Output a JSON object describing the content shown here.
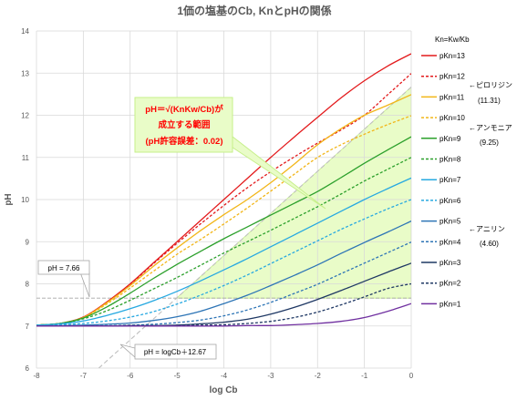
{
  "chart_data": {
    "type": "line",
    "title": "1価の塩基のCb, KnとpHの関係",
    "xlabel": "log Cb",
    "ylabel": "pH",
    "xlim": [
      -8,
      0
    ],
    "ylim": [
      6,
      14
    ],
    "x_ticks": [
      "-8",
      "-7",
      "-6",
      "-5",
      "-4",
      "-3",
      "-2",
      "-1",
      "0"
    ],
    "y_ticks": [
      "6",
      "7",
      "8",
      "9",
      "10",
      "11",
      "12",
      "13",
      "14"
    ],
    "grid": true,
    "legend_position": "right",
    "legend_title": "Kn=Kw/Kb",
    "x_samples": [
      -8,
      -7.5,
      -7,
      -6.5,
      -6,
      -5.5,
      -5,
      -4.5,
      -4,
      -3.5,
      -3,
      -2.5,
      -2,
      -1.5,
      -1,
      -0.5,
      0
    ],
    "series": [
      {
        "name": "pKn=13",
        "pKn": 13,
        "color": "#e31a1c",
        "dash": "solid",
        "values": [
          7.02,
          7.06,
          7.21,
          7.57,
          8.0,
          8.5,
          9.0,
          9.5,
          10.0,
          10.5,
          11.0,
          11.48,
          11.95,
          12.41,
          12.82,
          13.17,
          13.46
        ]
      },
      {
        "name": "pKn=12",
        "pKn": 12,
        "color": "#e31a1c",
        "dash": "dashed",
        "values": [
          7.02,
          7.06,
          7.21,
          7.56,
          7.99,
          8.48,
          8.96,
          9.42,
          9.86,
          10.28,
          10.66,
          11.01,
          11.34,
          11.65,
          12.0,
          12.49,
          12.99
        ]
      },
      {
        "name": "pKn=11",
        "pKn": 11,
        "color": "#f2b619",
        "dash": "solid",
        "values": [
          7.02,
          7.06,
          7.2,
          7.55,
          7.96,
          8.42,
          8.85,
          9.26,
          9.64,
          10.0,
          10.4,
          10.84,
          11.3,
          11.68,
          12.0,
          12.24,
          12.49
        ]
      },
      {
        "name": "pKn=10",
        "pKn": 10,
        "color": "#f2b619",
        "dash": "dashed",
        "values": [
          7.02,
          7.06,
          7.2,
          7.52,
          7.9,
          8.3,
          8.7,
          9.05,
          9.42,
          9.8,
          10.2,
          10.6,
          11.0,
          11.3,
          11.55,
          11.78,
          11.99
        ]
      },
      {
        "name": "pKn=9",
        "pKn": 9,
        "color": "#2ca02c",
        "dash": "solid",
        "values": [
          7.02,
          7.06,
          7.19,
          7.45,
          7.78,
          8.13,
          8.46,
          8.77,
          9.07,
          9.35,
          9.63,
          9.91,
          10.19,
          10.52,
          10.86,
          11.18,
          11.49
        ]
      },
      {
        "name": "pKn=8",
        "pKn": 8,
        "color": "#2ca02c",
        "dash": "dashed",
        "values": [
          7.02,
          7.06,
          7.17,
          7.36,
          7.61,
          7.88,
          8.15,
          8.44,
          8.73,
          9.0,
          9.27,
          9.55,
          9.83,
          10.13,
          10.44,
          10.72,
          11.0
        ]
      },
      {
        "name": "pKn=7",
        "pKn": 7,
        "color": "#27a9e1",
        "dash": "solid",
        "values": [
          7.02,
          7.05,
          7.12,
          7.25,
          7.41,
          7.6,
          7.82,
          8.07,
          8.33,
          8.6,
          8.88,
          9.16,
          9.44,
          9.72,
          10.0,
          10.26,
          10.51
        ]
      },
      {
        "name": "pKn=6",
        "pKn": 6,
        "color": "#27a9e1",
        "dash": "dashed",
        "values": [
          7.01,
          7.03,
          7.06,
          7.12,
          7.21,
          7.34,
          7.52,
          7.73,
          7.96,
          8.21,
          8.48,
          8.75,
          9.02,
          9.29,
          9.54,
          9.78,
          10.0
        ]
      },
      {
        "name": "pKn=5",
        "pKn": 5,
        "color": "#2e75b6",
        "dash": "solid",
        "values": [
          7.0,
          7.01,
          7.02,
          7.04,
          7.07,
          7.13,
          7.22,
          7.35,
          7.53,
          7.73,
          7.96,
          8.2,
          8.45,
          8.72,
          8.98,
          9.23,
          9.49
        ]
      },
      {
        "name": "pKn=4",
        "pKn": 4,
        "color": "#2e75b6",
        "dash": "dashed",
        "values": [
          7.0,
          7.0,
          7.01,
          7.01,
          7.02,
          7.04,
          7.08,
          7.14,
          7.24,
          7.38,
          7.56,
          7.77,
          7.99,
          8.24,
          8.49,
          8.74,
          8.99
        ]
      },
      {
        "name": "pKn=3",
        "pKn": 3,
        "color": "#1f3864",
        "dash": "solid",
        "values": [
          7.0,
          7.0,
          7.0,
          7.0,
          7.01,
          7.01,
          7.02,
          7.05,
          7.09,
          7.16,
          7.28,
          7.44,
          7.63,
          7.84,
          8.06,
          8.28,
          8.49
        ]
      },
      {
        "name": "pKn=2",
        "pKn": 2,
        "color": "#1f3864",
        "dash": "dashed",
        "values": [
          7.0,
          7.0,
          7.0,
          7.0,
          7.0,
          7.0,
          7.01,
          7.02,
          7.03,
          7.06,
          7.11,
          7.2,
          7.33,
          7.5,
          7.69,
          7.89,
          8.0
        ]
      },
      {
        "name": "pKn=1",
        "pKn": 1,
        "color": "#7030a0",
        "dash": "solid",
        "values": [
          7.0,
          7.0,
          7.0,
          7.0,
          7.0,
          7.0,
          7.0,
          7.0,
          7.0,
          7.01,
          7.01,
          7.03,
          7.06,
          7.11,
          7.2,
          7.35,
          7.53
        ]
      }
    ],
    "reference_lines": [
      {
        "label": "pH = 7.66",
        "type": "horizontal",
        "y": 7.66,
        "color": "#a6a6a6"
      },
      {
        "label": "pH = logCb＋12.67",
        "type": "diagonal",
        "slope": 1,
        "intercept": 12.67,
        "color": "#bfbfbf"
      }
    ],
    "region": {
      "fill": "#e9fcc8",
      "edge": "#c6ef8a",
      "bounds": "pH ≥ 7.66 and pH ≤ logCb + 12.67"
    },
    "annotations": {
      "region_label": [
        "pH＝√(KnKw/Cb)が",
        "成立する範囲",
        "(pH許容誤差：0.02)"
      ],
      "region_label_color": "#ff0000",
      "pyrrolidine": {
        "name": "←ピロリジン",
        "value": "(11.31)"
      },
      "ammonia": {
        "name": "←アンモニア",
        "value": "(9.25)"
      },
      "aniline": {
        "name": "←アニリン",
        "value": "(4.60)"
      }
    }
  }
}
